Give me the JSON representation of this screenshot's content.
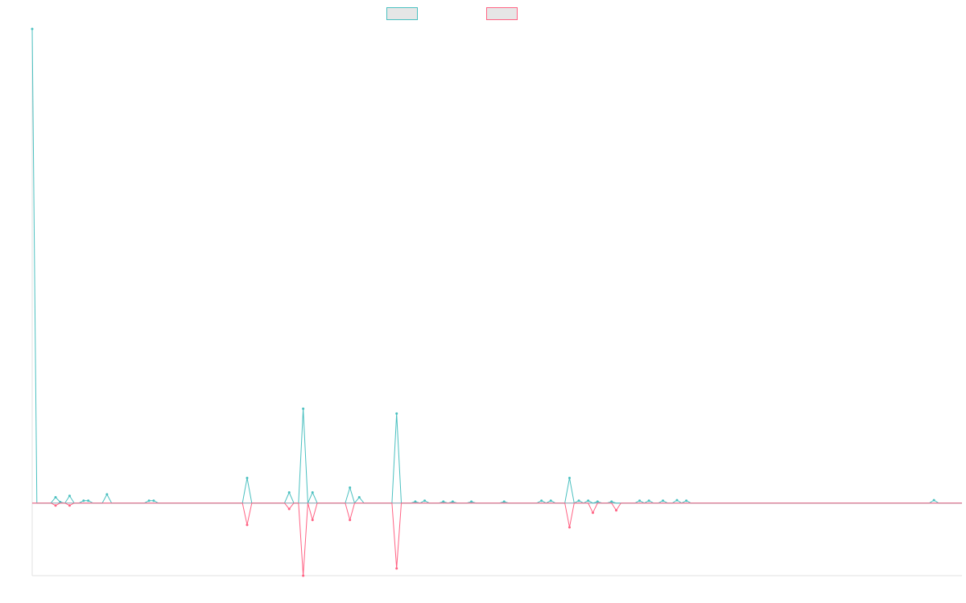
{
  "colors": {
    "series_a": "#4bc0c0",
    "series_b": "#ff6384",
    "axis": "#e0e0e0",
    "legend_fill": "#e6e6e6"
  },
  "chart_data": {
    "type": "line",
    "title": "",
    "xlabel": "",
    "ylabel": "",
    "grid": false,
    "legend": "top-center",
    "x_count": 200,
    "ylim": [
      -1.5,
      9.8
    ],
    "series": [
      {
        "color": "#4bc0c0",
        "points": [
          [
            0,
            9.8
          ],
          [
            5,
            0.12
          ],
          [
            6,
            0.02
          ],
          [
            8,
            0.15
          ],
          [
            11,
            0.05
          ],
          [
            12,
            0.05
          ],
          [
            16,
            0.18
          ],
          [
            25,
            0.05
          ],
          [
            26,
            0.05
          ],
          [
            46,
            0.52
          ],
          [
            55,
            0.22
          ],
          [
            58,
            1.95
          ],
          [
            60,
            0.22
          ],
          [
            68,
            0.32
          ],
          [
            70,
            0.12
          ],
          [
            78,
            1.85
          ],
          [
            82,
            0.03
          ],
          [
            84,
            0.05
          ],
          [
            88,
            0.03
          ],
          [
            90,
            0.03
          ],
          [
            94,
            0.03
          ],
          [
            101,
            0.03
          ],
          [
            109,
            0.05
          ],
          [
            111,
            0.05
          ],
          [
            115,
            0.52
          ],
          [
            117,
            0.05
          ],
          [
            119,
            0.05
          ],
          [
            121,
            0.03
          ],
          [
            124,
            0.03
          ],
          [
            130,
            0.05
          ],
          [
            132,
            0.05
          ],
          [
            135,
            0.05
          ],
          [
            138,
            0.06
          ],
          [
            140,
            0.05
          ],
          [
            193,
            0.06
          ]
        ]
      },
      {
        "color": "#ff6384",
        "points": [
          [
            5,
            -0.05
          ],
          [
            8,
            -0.05
          ],
          [
            46,
            -0.45
          ],
          [
            55,
            -0.12
          ],
          [
            58,
            -1.5
          ],
          [
            60,
            -0.35
          ],
          [
            68,
            -0.35
          ],
          [
            78,
            -1.35
          ],
          [
            115,
            -0.5
          ],
          [
            120,
            -0.2
          ],
          [
            125,
            -0.15
          ]
        ]
      }
    ]
  }
}
